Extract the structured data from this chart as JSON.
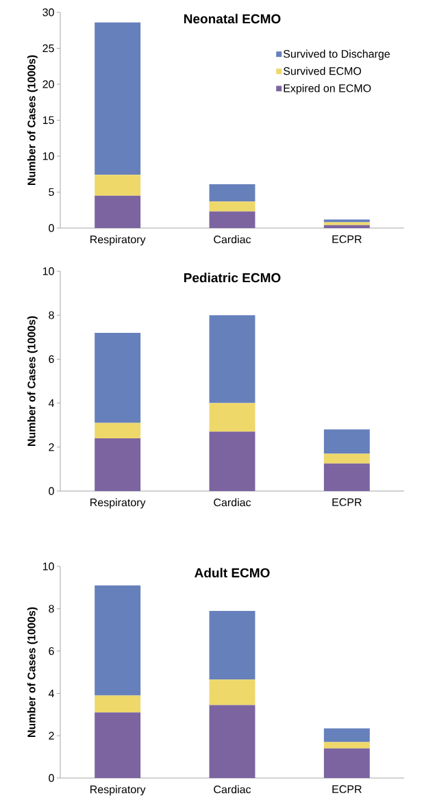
{
  "chart_data": [
    {
      "type": "bar",
      "title": "Neonatal ECMO",
      "ylabel": "Number of Cases (1000s)",
      "categories": [
        "Respiratory",
        "Cardiac",
        "ECPR"
      ],
      "stacked": true,
      "ylim": [
        0,
        30
      ],
      "yticks": [
        0,
        5,
        10,
        15,
        20,
        25,
        30
      ],
      "legend": "top right",
      "series": [
        {
          "name": "Expired on ECMO",
          "color": "#7b64a0",
          "values": [
            4.5,
            2.3,
            0.4
          ]
        },
        {
          "name": "Survived ECMO",
          "color": "#eed86a",
          "values": [
            2.9,
            1.4,
            0.4
          ]
        },
        {
          "name": "Survived to Discharge",
          "color": "#6680bb",
          "values": [
            21.2,
            2.4,
            0.4
          ]
        }
      ]
    },
    {
      "type": "bar",
      "title": "Pediatric ECMO",
      "ylabel": "Number of Cases (1000s)",
      "categories": [
        "Respiratory",
        "Cardiac",
        "ECPR"
      ],
      "stacked": true,
      "ylim": [
        0,
        10
      ],
      "yticks": [
        0,
        2,
        4,
        6,
        8,
        10
      ],
      "series": [
        {
          "color": "#7b64a0",
          "values": [
            2.4,
            2.7,
            1.25
          ]
        },
        {
          "color": "#eed86a",
          "values": [
            0.7,
            1.3,
            0.45
          ]
        },
        {
          "color": "#6680bb",
          "values": [
            4.1,
            4.0,
            1.1
          ]
        }
      ]
    },
    {
      "type": "bar",
      "title": "Adult ECMO",
      "ylabel": "Number of Cases (1000s)",
      "categories": [
        "Respiratory",
        "Cardiac",
        "ECPR"
      ],
      "stacked": true,
      "ylim": [
        0,
        10
      ],
      "yticks": [
        0,
        2,
        4,
        6,
        8,
        10
      ],
      "series": [
        {
          "color": "#7b64a0",
          "values": [
            3.1,
            3.45,
            1.4
          ]
        },
        {
          "color": "#eed86a",
          "values": [
            0.8,
            1.2,
            0.3
          ]
        },
        {
          "color": "#6680bb",
          "values": [
            5.2,
            3.25,
            0.65
          ]
        }
      ]
    }
  ]
}
